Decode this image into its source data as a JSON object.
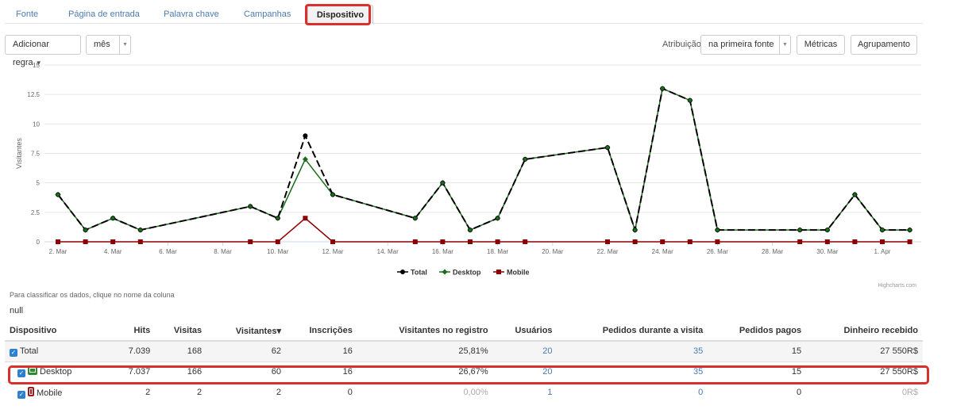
{
  "tabs": [
    {
      "label": "Fonte"
    },
    {
      "label": "Página de entrada"
    },
    {
      "label": "Palavra chave"
    },
    {
      "label": "Campanhas"
    },
    {
      "label": "Dispositivo",
      "active": true
    }
  ],
  "toolbar": {
    "add_rule_label": "Adicionar regra",
    "period_value": "mês",
    "attribution_label": "Atribuição",
    "attribution_value": "na primeira fonte",
    "metrics_label": "Métricas",
    "grouping_label": "Agrupamento"
  },
  "chart_data": {
    "type": "line",
    "ylabel": "Visitantes",
    "ylim": [
      0,
      15
    ],
    "yticks": [
      "0",
      "2.5",
      "5",
      "7.5",
      "10",
      "12.5",
      "15"
    ],
    "x_tick_labels": [
      "2. Mar",
      "4. Mar",
      "6. Mar",
      "8. Mar",
      "10. Mar",
      "12. Mar",
      "14. Mar",
      "16. Mar",
      "18. Mar",
      "20. Mar",
      "22. Mar",
      "24. Mar",
      "26. Mar",
      "28. Mar",
      "30. Mar",
      "1. Apr"
    ],
    "x_days": [
      1,
      2,
      3,
      4,
      8,
      9,
      10,
      11,
      14,
      15,
      16,
      17,
      18,
      21,
      22,
      23,
      24,
      25,
      28,
      29,
      30,
      31,
      32
    ],
    "x_dates": [
      "2 Mar",
      "3 Mar",
      "4 Mar",
      "5 Mar",
      "9 Mar",
      "10 Mar",
      "11 Mar",
      "12 Mar",
      "15 Mar",
      "16 Mar",
      "17 Mar",
      "18 Mar",
      "19 Mar",
      "22 Mar",
      "23 Mar",
      "24 Mar",
      "25 Mar",
      "26 Mar",
      "29 Mar",
      "30 Mar",
      "31 Mar",
      "1 Apr",
      "2 Apr"
    ],
    "series": [
      {
        "name": "Total",
        "color": "#000000",
        "values": [
          4,
          1,
          2,
          1,
          3,
          2,
          9,
          4,
          2,
          5,
          1,
          2,
          7,
          8,
          1,
          13,
          12,
          1,
          1,
          1,
          4,
          1,
          1
        ]
      },
      {
        "name": "Desktop",
        "color": "#1a6b1a",
        "values": [
          4,
          1,
          2,
          1,
          3,
          2,
          7,
          4,
          2,
          5,
          1,
          2,
          7,
          8,
          1,
          13,
          12,
          1,
          1,
          1,
          4,
          1,
          1
        ]
      },
      {
        "name": "Mobile",
        "color": "#8b0000",
        "values": [
          0,
          0,
          0,
          0,
          0,
          0,
          2,
          0,
          0,
          0,
          0,
          0,
          0,
          0,
          0,
          0,
          0,
          0,
          0,
          0,
          0,
          0,
          0
        ]
      }
    ],
    "legend_position": "bottom-center",
    "credits": "Highcharts.com"
  },
  "hint": "Para classificar os dados, clique no nome da coluna",
  "null_text": "null",
  "table": {
    "headers": [
      "Dispositivo",
      "Hits",
      "Visitas",
      "Visitantes",
      "Inscrições",
      "Visitantes no registro",
      "Usuários",
      "Pedidos durante a visita",
      "Pedidos pagos",
      "Dinheiro recebido"
    ],
    "sort_indicator": "▾",
    "rows": [
      {
        "name": "Total",
        "hits": "7.039",
        "visits": "168",
        "visitors": "62",
        "signups": "16",
        "reg_visitors": "25,81%",
        "users": "20",
        "orders_visit": "35",
        "orders_paid": "15",
        "money": "27 550R$"
      },
      {
        "name": "Desktop",
        "hits": "7.037",
        "visits": "166",
        "visitors": "60",
        "signups": "16",
        "reg_visitors": "26,67%",
        "users": "20",
        "orders_visit": "35",
        "orders_paid": "15",
        "money": "27 550R$"
      },
      {
        "name": "Mobile",
        "hits": "2",
        "visits": "2",
        "visitors": "2",
        "signups": "0",
        "reg_visitors": "0,00%",
        "users": "1",
        "orders_visit": "0",
        "orders_paid": "0",
        "money": "0R$"
      }
    ]
  }
}
